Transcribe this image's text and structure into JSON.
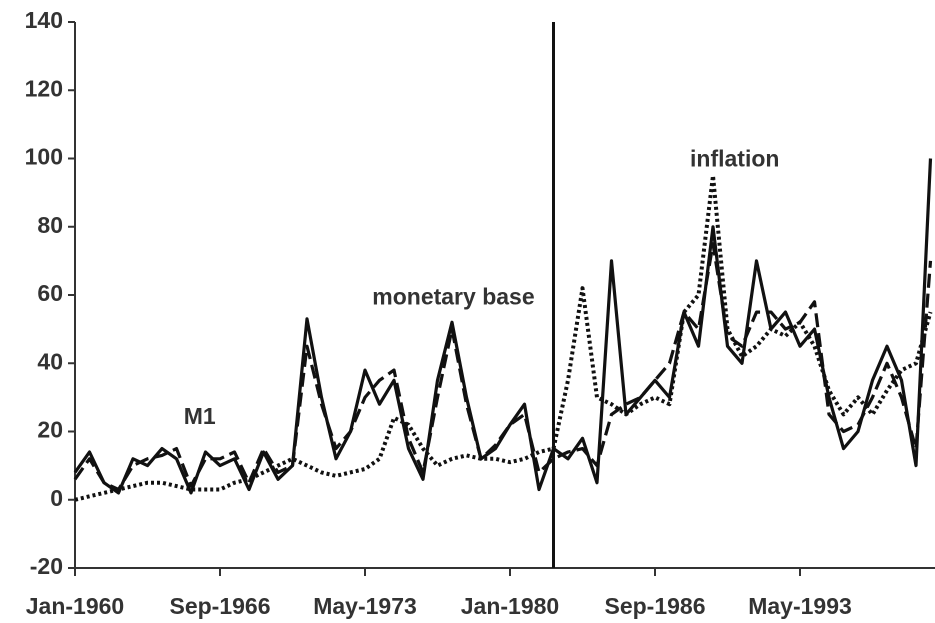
{
  "chart_data": {
    "type": "line",
    "categories": [
      "Jan-1960",
      null,
      null,
      null,
      null,
      null,
      null,
      null,
      null,
      null,
      "Sep-1966",
      null,
      null,
      null,
      null,
      null,
      null,
      null,
      null,
      null,
      "May-1973",
      null,
      null,
      null,
      null,
      null,
      null,
      null,
      null,
      null,
      "Jan-1980",
      null,
      null,
      null,
      null,
      null,
      null,
      null,
      null,
      null,
      "Sep-1986",
      null,
      null,
      null,
      null,
      null,
      null,
      null,
      null,
      null,
      "May-1993",
      null,
      null,
      null,
      null,
      null,
      null,
      null,
      null,
      null
    ],
    "ylim": [
      -20,
      140
    ],
    "yticks": [
      -20,
      0,
      20,
      40,
      60,
      80,
      100,
      120,
      140
    ],
    "vertical_line": 33,
    "series": [
      {
        "color": "#111111",
        "dash": "solid",
        "values": [
          8,
          14,
          5,
          2,
          12,
          10,
          15,
          12,
          2,
          14,
          10,
          12,
          3,
          14,
          6,
          10,
          53,
          30,
          12,
          20,
          38,
          28,
          35,
          15,
          6,
          35,
          52,
          30,
          12,
          15,
          22,
          28,
          3,
          15,
          12,
          18,
          5,
          70,
          25,
          30,
          35,
          30,
          55,
          45,
          80,
          45,
          40,
          70,
          50,
          55,
          45,
          50,
          30,
          15,
          20,
          35,
          45,
          35,
          10,
          100
        ]
      },
      {
        "color": "#111111",
        "dash": "dashed",
        "values": [
          6,
          12,
          5,
          3,
          10,
          12,
          13,
          15,
          4,
          12,
          12,
          14,
          5,
          15,
          8,
          10,
          45,
          28,
          15,
          20,
          30,
          35,
          38,
          18,
          8,
          30,
          50,
          28,
          12,
          16,
          22,
          25,
          8,
          12,
          14,
          15,
          10,
          25,
          28,
          30,
          35,
          40,
          55,
          50,
          75,
          48,
          45,
          55,
          55,
          50,
          52,
          58,
          25,
          20,
          22,
          30,
          40,
          30,
          15,
          70
        ]
      },
      {
        "color": "#111111",
        "dash": "dotted",
        "values": [
          0,
          1,
          2,
          3,
          4,
          5,
          5,
          4,
          3,
          3,
          3,
          5,
          6,
          8,
          10,
          12,
          10,
          8,
          7,
          8,
          9,
          12,
          24,
          22,
          15,
          10,
          12,
          13,
          12,
          12,
          11,
          12,
          14,
          15,
          35,
          62,
          30,
          28,
          25,
          28,
          30,
          28,
          55,
          60,
          95,
          50,
          42,
          45,
          50,
          48,
          52,
          45,
          32,
          25,
          30,
          25,
          32,
          38,
          40,
          55
        ]
      }
    ],
    "annotations": [
      {
        "text": "M1",
        "x": 8.6,
        "y": 24
      },
      {
        "text": "monetary base",
        "x": 26.1,
        "y": 59
      },
      {
        "text": "inflation",
        "x": 45.5,
        "y": 99.5
      }
    ]
  }
}
